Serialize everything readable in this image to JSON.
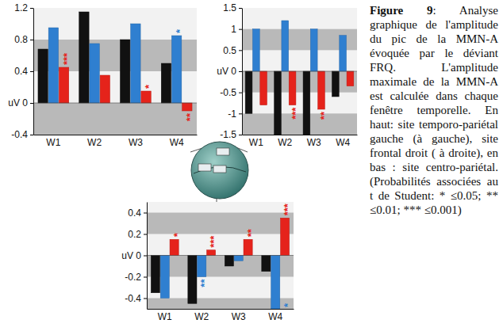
{
  "chart_data": [
    {
      "type": "bar",
      "categories": [
        "W1",
        "W2",
        "W3",
        "W4"
      ],
      "series": [
        {
          "color": "#111111",
          "values": [
            0.68,
            1.15,
            0.8,
            0.5
          ]
        },
        {
          "color": "#2f7fd0",
          "values": [
            0.95,
            0.75,
            1.0,
            0.85
          ],
          "significance": [
            null,
            null,
            null,
            "*"
          ]
        },
        {
          "color": "#e5231b",
          "values": [
            0.45,
            0.35,
            0.15,
            -0.1
          ],
          "significance": [
            "***",
            null,
            "*",
            "**"
          ]
        }
      ],
      "ylim": [
        -0.4,
        1.2
      ],
      "yticks": [
        -0.4,
        {
          "value": 0,
          "label": "uV 0"
        },
        0.4,
        0.8,
        1.2
      ],
      "grid": false
    },
    {
      "type": "bar",
      "categories": [
        "W1",
        "W2",
        "W3",
        "W4"
      ],
      "series": [
        {
          "color": "#111111",
          "values": [
            -1.0,
            -1.5,
            -1.5,
            -0.6
          ]
        },
        {
          "color": "#2f7fd0",
          "values": [
            1.0,
            1.2,
            1.0,
            0.85
          ]
        },
        {
          "color": "#e5231b",
          "values": [
            -0.8,
            -0.8,
            -0.9,
            -0.35
          ],
          "significance": [
            null,
            "***",
            "**",
            null
          ]
        }
      ],
      "ylim": [
        -1.5,
        1.5
      ],
      "yticks": [
        -1.5,
        -1,
        -0.5,
        {
          "value": 0,
          "label": "uV 0"
        },
        0.5,
        1,
        1.5
      ],
      "grid": false
    },
    {
      "type": "bar",
      "categories": [
        "W1",
        "W2",
        "W3",
        "W4"
      ],
      "series": [
        {
          "color": "#111111",
          "values": [
            -0.35,
            -0.45,
            -0.1,
            -0.15
          ]
        },
        {
          "color": "#2f7fd0",
          "values": [
            -0.4,
            -0.2,
            -0.05,
            -0.5
          ],
          "significance": [
            null,
            "**",
            null,
            "*"
          ]
        },
        {
          "color": "#e5231b",
          "values": [
            0.15,
            0.05,
            0.15,
            0.35
          ],
          "significance": [
            "*",
            "***",
            "**",
            "***"
          ]
        }
      ],
      "ylim": [
        -0.5,
        0.5
      ],
      "yticks": [
        -0.4,
        -0.2,
        {
          "value": 0,
          "label": "uV 0"
        },
        0.2,
        0.4
      ],
      "grid": false
    }
  ],
  "caption": {
    "label": "Figure 9",
    "text": ": Analyse graphique de l'amplitude du pic de la MMN-A évoquée par le déviant FRQ. L'amplitude maximale de la MMN-A est calculée dans chaque fenêtre temporelle. En haut: site temporo-pariétal gauche (à gauche), site frontal droit ( à droite), en bas : site centro-pariétal. (Probabilités associées au t de Student: * ≤0.05; ** ≤0.01; *** ≤0.001)"
  }
}
